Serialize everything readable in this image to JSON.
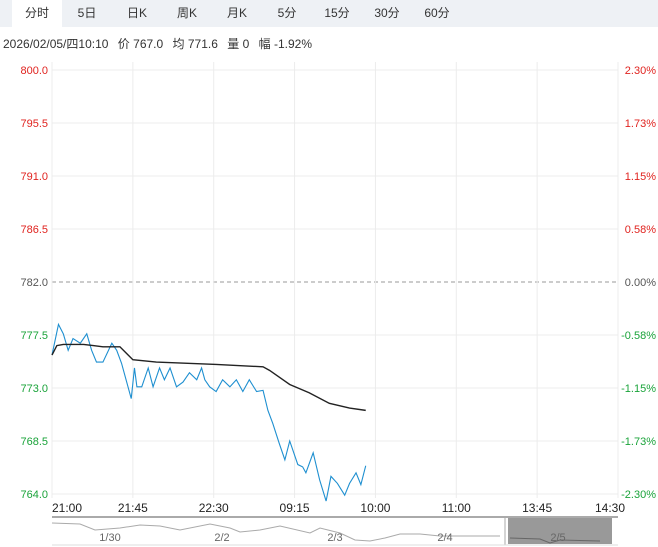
{
  "tabs": [
    "分时",
    "5日",
    "日K",
    "周K",
    "月K",
    "5分",
    "15分",
    "30分",
    "60分"
  ],
  "active_tab": 0,
  "info": {
    "datetime": "2026/02/05/四10:10",
    "price_label": "价",
    "price": "767.0",
    "avg_label": "均",
    "avg": "771.6",
    "vol_label": "量",
    "vol": "0",
    "chg_label": "幅",
    "chg": "-1.92%"
  },
  "colors": {
    "up": "#e0231f",
    "down": "#1aa33a",
    "flat": "#555555",
    "price_line": "#1e8fd0",
    "avg_line": "#222222"
  },
  "chart_data": {
    "type": "line",
    "ylim": [
      764.0,
      800.0
    ],
    "base": 782.0,
    "y_ticks": [
      "800.0",
      "795.5",
      "791.0",
      "786.5",
      "782.0",
      "777.5",
      "773.0",
      "768.5",
      "764.0"
    ],
    "pct_ticks": [
      "2.30%",
      "1.73%",
      "1.15%",
      "0.58%",
      "0.00%",
      "-0.58%",
      "-1.15%",
      "-1.73%",
      "-2.30%"
    ],
    "x_ticks": [
      "21:00",
      "21:45",
      "22:30",
      "09:15",
      "10:00",
      "11:00",
      "13:45",
      "14:30"
    ],
    "x_unit": "tick interval index (0-7)",
    "series": [
      {
        "name": "价",
        "x": [
          0,
          0.08,
          0.14,
          0.2,
          0.26,
          0.35,
          0.43,
          0.49,
          0.55,
          0.63,
          0.74,
          0.8,
          0.86,
          0.98,
          1.02,
          1.05,
          1.11,
          1.19,
          1.25,
          1.33,
          1.39,
          1.46,
          1.54,
          1.62,
          1.7,
          1.79,
          1.85,
          1.89,
          1.95,
          2.03,
          2.11,
          2.2,
          2.28,
          2.36,
          2.44,
          2.53,
          2.61,
          2.67,
          2.73,
          2.81,
          2.88,
          2.94,
          3.04,
          3.1,
          3.14,
          3.23,
          3.31,
          3.39,
          3.45,
          3.53,
          3.62,
          3.68,
          3.76,
          3.82,
          3.88
        ],
        "values": [
          775.8,
          778.4,
          777.6,
          776.2,
          777.2,
          776.8,
          777.6,
          776.2,
          775.2,
          775.2,
          776.8,
          776.2,
          775.1,
          772.1,
          774.7,
          773.1,
          773.1,
          774.7,
          773.1,
          774.7,
          773.7,
          774.7,
          773.1,
          773.5,
          774.3,
          773.7,
          774.7,
          773.7,
          773.1,
          772.7,
          773.7,
          773.1,
          773.7,
          772.7,
          773.7,
          772.7,
          772.8,
          771.1,
          770.0,
          768.3,
          766.9,
          768.5,
          766.5,
          766.3,
          765.8,
          767.5,
          765.2,
          763.4,
          765.5,
          764.9,
          763.9,
          764.9,
          765.8,
          764.8,
          766.4
        ]
      },
      {
        "name": "均",
        "x": [
          0,
          0.06,
          0.14,
          0.39,
          0.51,
          0.63,
          0.84,
          1.0,
          1.29,
          2.03,
          2.61,
          2.69,
          2.94,
          3.18,
          3.43,
          3.68,
          3.88
        ],
        "values": [
          775.8,
          776.6,
          776.7,
          776.7,
          776.6,
          776.5,
          776.5,
          775.4,
          775.2,
          775.0,
          774.8,
          774.5,
          773.3,
          772.6,
          771.7,
          771.3,
          771.1
        ]
      }
    ],
    "navigator": {
      "labels": [
        "1/30",
        "2/2",
        "2/3",
        "2/4",
        "2/5"
      ]
    }
  }
}
